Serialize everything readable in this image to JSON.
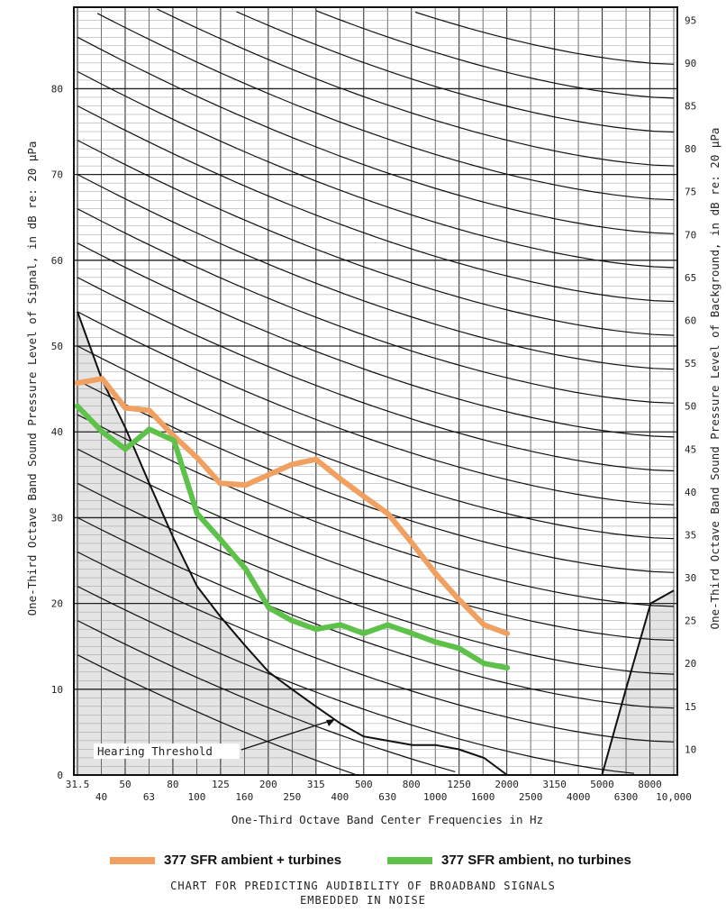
{
  "chart_data": {
    "type": "line",
    "xlabel": "One-Third Octave Band Center Frequencies in Hz",
    "ylabel_left": "One-Third Octave Band Sound Pressure Level of Signal, in dB re: 20 µPa",
    "ylabel_right": "One-Third Octave Band Sound Pressure Level of Background, in dB re: 20 µPa",
    "x_scale": "log (one-third octave bands)",
    "categories": [
      "31.5",
      "40",
      "50",
      "63",
      "80",
      "100",
      "125",
      "160",
      "200",
      "250",
      "315",
      "400",
      "500",
      "630",
      "800",
      "1000",
      "1250",
      "1600",
      "2000",
      "2500",
      "3150",
      "4000",
      "5000",
      "6300",
      "8000",
      "10,000"
    ],
    "tick_labels_upper": [
      "31.5",
      "50",
      "80",
      "125",
      "200",
      "315",
      "500",
      "800",
      "1250",
      "2000",
      "3150",
      "5000",
      "8000"
    ],
    "tick_labels_lower": [
      "40",
      "63",
      "100",
      "160",
      "250",
      "400",
      "630",
      "1000",
      "1600",
      "2500",
      "4000",
      "6300",
      "10,000"
    ],
    "ylim_left": [
      0,
      90
    ],
    "yticks_left": [
      "0",
      "10",
      "20",
      "30",
      "40",
      "50",
      "60",
      "70",
      "80"
    ],
    "yticks_right": [
      "10",
      "15",
      "20",
      "25",
      "30",
      "35",
      "40",
      "45",
      "50",
      "55",
      "60",
      "65",
      "70",
      "75",
      "80",
      "85",
      "90",
      "95"
    ],
    "grid": true,
    "series": [
      {
        "name": "377 SFR ambient + turbines",
        "color": "#f0a060",
        "points": [
          [
            31.5,
            45.7
          ],
          [
            40,
            46.2
          ],
          [
            50,
            42.8
          ],
          [
            63,
            42.5
          ],
          [
            80,
            39.5
          ],
          [
            100,
            37
          ],
          [
            125,
            34
          ],
          [
            160,
            33.8
          ],
          [
            200,
            35
          ],
          [
            250,
            36.2
          ],
          [
            315,
            36.8
          ],
          [
            400,
            34.5
          ],
          [
            500,
            32.5
          ],
          [
            630,
            30.5
          ],
          [
            800,
            27
          ],
          [
            1000,
            23.5
          ],
          [
            1250,
            20.5
          ],
          [
            1600,
            17.5
          ],
          [
            2000,
            16.5
          ]
        ]
      },
      {
        "name": "377 SFR ambient, no turbines",
        "color": "#5ec24a",
        "points": [
          [
            31.5,
            43
          ],
          [
            40,
            40
          ],
          [
            50,
            38
          ],
          [
            63,
            40.3
          ],
          [
            80,
            39
          ],
          [
            100,
            30.5
          ],
          [
            125,
            27.5
          ],
          [
            160,
            24
          ],
          [
            200,
            19.5
          ],
          [
            250,
            18
          ],
          [
            315,
            17
          ],
          [
            400,
            17.5
          ],
          [
            500,
            16.5
          ],
          [
            630,
            17.5
          ],
          [
            800,
            16.5
          ],
          [
            1000,
            15.5
          ],
          [
            1250,
            14.8
          ],
          [
            1600,
            13
          ],
          [
            2000,
            12.5
          ]
        ]
      },
      {
        "name": "Hearing Threshold",
        "color": "#111111",
        "points": [
          [
            31.5,
            54
          ],
          [
            40,
            46
          ],
          [
            50,
            40.5
          ],
          [
            63,
            34
          ],
          [
            80,
            27.5
          ],
          [
            100,
            22
          ],
          [
            125,
            18.5
          ],
          [
            160,
            15
          ],
          [
            200,
            12
          ],
          [
            250,
            10
          ],
          [
            315,
            8
          ],
          [
            400,
            6
          ],
          [
            500,
            4.5
          ],
          [
            630,
            4
          ],
          [
            800,
            3.5
          ],
          [
            1000,
            3.5
          ],
          [
            1250,
            3
          ],
          [
            1600,
            2
          ],
          [
            2000,
            0
          ]
        ]
      },
      {
        "name": "",
        "color": "#111111",
        "points": [
          [
            5000,
            0
          ],
          [
            6300,
            10
          ],
          [
            8000,
            20
          ],
          [
            10000,
            21.5
          ]
        ]
      }
    ],
    "annotation": "Hearing Threshold",
    "legend": [
      {
        "label": "377 SFR ambient + turbines",
        "color": "#f0a060"
      },
      {
        "label": "377 SFR ambient, no turbines",
        "color": "#5ec24a"
      }
    ],
    "legend_position": "bottom"
  },
  "caption": {
    "line1": "CHART FOR PREDICTING AUDIBILITY OF BROADBAND SIGNALS",
    "line2": "EMBEDDED IN NOISE"
  }
}
